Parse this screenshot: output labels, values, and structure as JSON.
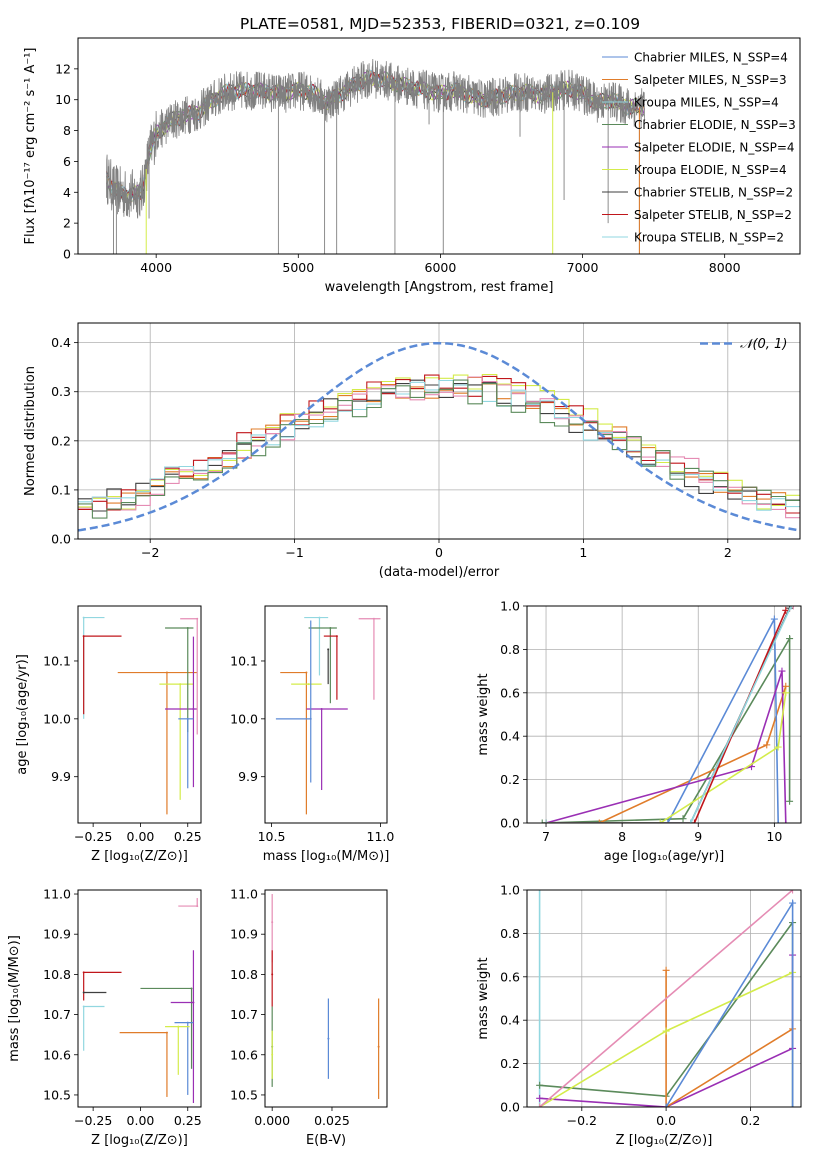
{
  "figure": {
    "title": "PLATE=0581, MJD=52353, FIBERID=0321, z=0.109"
  },
  "colors": {
    "gray": "#808080",
    "blue": "#5B8AD6",
    "orange": "#E07C2A",
    "green": "#5B8A5B",
    "purple": "#9A2FB4",
    "yellow": "#D4EC4A",
    "dark": "#3F3F3F",
    "red": "#C0161B",
    "cyan": "#92D7E0",
    "pink": "#E58CB4",
    "dashed": "#5B8AD6"
  },
  "chart_data": [
    {
      "id": "spectrum",
      "type": "line",
      "xlabel": "wavelength [Angstrom, rest frame]",
      "ylabel": "Flux [fλ10⁻¹⁷ erg cm⁻² s⁻¹ A⁻¹]",
      "xlim": [
        3450,
        8530
      ],
      "ylim": [
        0,
        14
      ],
      "xticks": [
        4000,
        5000,
        6000,
        7000,
        8000
      ],
      "yticks": [
        0,
        2,
        4,
        6,
        8,
        10,
        12
      ],
      "legend_position": "right",
      "legend": [
        "Chabrier MILES, N_SSP=4",
        "Salpeter MILES, N_SSP=3",
        "Kroupa MILES, N_SSP=4",
        "Chabrier ELODIE, N_SSP=3",
        "Salpeter ELODIE, N_SSP=4",
        "Kroupa ELODIE, N_SSP=4",
        "Chabrier STELIB, N_SSP=2",
        "Salpeter STELIB, N_SSP=2",
        "Kroupa STELIB, N_SSP=2"
      ],
      "data_continuum": {
        "x": [
          3650,
          3700,
          3800,
          3900,
          3950,
          4000,
          4100,
          4200,
          4300,
          4400,
          4500,
          4600,
          4700,
          4800,
          4900,
          5000,
          5100,
          5200,
          5300,
          5400,
          5500,
          5600,
          5700,
          5800,
          5900,
          6000,
          6100,
          6200,
          6300,
          6400,
          6500,
          6600,
          6700,
          6800,
          6900,
          7000,
          7100,
          7200,
          7300,
          7400
        ],
        "y": [
          5.0,
          4.2,
          3.8,
          4.0,
          6.5,
          7.8,
          8.6,
          9.0,
          9.2,
          10.0,
          10.5,
          10.6,
          10.6,
          10.5,
          10.4,
          10.6,
          10.5,
          9.8,
          10.4,
          11.0,
          11.4,
          11.3,
          11.0,
          10.8,
          10.6,
          10.4,
          10.6,
          10.3,
          10.0,
          10.2,
          10.4,
          10.5,
          10.3,
          10.5,
          10.7,
          10.4,
          9.8,
          10.0,
          9.6,
          9.5
        ]
      },
      "data_range": [
        3650,
        7440
      ],
      "absorption_dips": [
        {
          "x": 3700,
          "y": 0
        },
        {
          "x": 3720,
          "y": 0
        },
        {
          "x": 3950,
          "y": 2.3
        },
        {
          "x": 4860,
          "y": 0
        },
        {
          "x": 5185,
          "y": 0
        },
        {
          "x": 5270,
          "y": 0
        },
        {
          "x": 5680,
          "y": 0
        },
        {
          "x": 5920,
          "y": 8.4
        },
        {
          "x": 6020,
          "y": 0
        },
        {
          "x": 6560,
          "y": 7.6
        },
        {
          "x": 6870,
          "y": 3.5
        },
        {
          "x": 7180,
          "y": 2.0
        },
        {
          "x": 7400,
          "y": 0
        }
      ],
      "model_spikes": [
        {
          "x": 3930,
          "color": "yellow",
          "y": 0
        },
        {
          "x": 6790,
          "color": "yellow",
          "y": 0
        },
        {
          "x": 7400,
          "color": "orange",
          "y": 0
        }
      ]
    },
    {
      "id": "residuals",
      "type": "histogram",
      "xlabel": "(data-model)/error",
      "ylabel": "Normed distribution",
      "xlim": [
        -2.5,
        2.5
      ],
      "ylim": [
        0,
        0.44
      ],
      "xticks": [
        -2,
        -1,
        0,
        1,
        2
      ],
      "xtick_labels": [
        "−2",
        "−1",
        "0",
        "1",
        "2"
      ],
      "yticks": [
        0.0,
        0.1,
        0.2,
        0.3,
        0.4
      ],
      "ytick_labels": [
        "0.0",
        "0.1",
        "0.2",
        "0.3",
        "0.4"
      ],
      "grid": true,
      "legend": "𝒩(0, 1)",
      "legend_position": "top-right",
      "bin_width": 0.1,
      "series": [
        {
          "color": "orange",
          "shift": 0.02,
          "amp": 0.31
        },
        {
          "color": "yellow",
          "shift": 0.04,
          "amp": 0.32
        },
        {
          "color": "dark",
          "shift": -0.03,
          "amp": 0.31
        },
        {
          "color": "red",
          "shift": 0.0,
          "amp": 0.32
        },
        {
          "color": "pink",
          "shift": 0.05,
          "amp": 0.31
        },
        {
          "color": "cyan",
          "shift": -0.02,
          "amp": 0.305
        },
        {
          "color": "green",
          "shift": 0.03,
          "amp": 0.3
        }
      ]
    },
    {
      "id": "age_vs_Z",
      "type": "scatter",
      "xlabel": "Z [log₁₀(Z/Z⊙)]",
      "ylabel": "age  [log₁₀(age/yr)]",
      "xlim": [
        -0.33,
        0.32
      ],
      "ylim": [
        9.82,
        10.195
      ],
      "xticks": [
        -0.25,
        0.0,
        0.25
      ],
      "xtick_labels": [
        "−0.25",
        "0.00",
        "0.25"
      ],
      "yticks": [
        9.9,
        10.0,
        10.1
      ],
      "ytick_labels": [
        "9.9",
        "10.0",
        "10.1"
      ],
      "points": [
        {
          "color": "cyan",
          "x": -0.3,
          "y": 10.175,
          "xerr": [
            0.0,
            0.11
          ],
          "yerr": [
            0.175,
            0.0
          ]
        },
        {
          "color": "red",
          "x": -0.3,
          "y": 10.143,
          "xerr": [
            0.0,
            0.2
          ],
          "yerr": [
            0.135,
            0.0
          ]
        },
        {
          "color": "orange",
          "x": 0.14,
          "y": 10.08,
          "xerr": [
            0.26,
            0.16
          ],
          "yerr": [
            0.245,
            0.0
          ]
        },
        {
          "color": "yellow",
          "x": 0.21,
          "y": 10.06,
          "xerr": [
            0.11,
            0.07
          ],
          "yerr": [
            0.2,
            0.0
          ]
        },
        {
          "color": "purple",
          "x": 0.28,
          "y": 10.017,
          "xerr": [
            0.15,
            0.02
          ],
          "yerr": [
            0.135,
            0.125
          ]
        },
        {
          "color": "green",
          "x": 0.25,
          "y": 10.157,
          "xerr": [
            0.12,
            0.03
          ],
          "yerr": [
            0.18,
            0.0
          ]
        },
        {
          "color": "pink",
          "x": 0.3,
          "y": 10.173,
          "xerr": [
            0.09,
            0.0
          ],
          "yerr": [
            0.2,
            0.0
          ]
        },
        {
          "color": "blue",
          "x": 0.25,
          "y": 10.0,
          "xerr": [
            0.05,
            0.03
          ],
          "yerr": [
            0.12,
            0.0
          ]
        }
      ]
    },
    {
      "id": "age_vs_mass",
      "type": "scatter",
      "xlabel": "mass [log₁₀(M/M⊙)]",
      "xlim": [
        10.47,
        11.03
      ],
      "ylim": [
        9.82,
        10.195
      ],
      "xticks": [
        10.5,
        11.0
      ],
      "xtick_labels": [
        "10.5",
        "11.0"
      ],
      "yticks": [
        9.9,
        10.0,
        10.1
      ],
      "ytick_labels": [
        "9.9",
        "10.0",
        "10.1"
      ],
      "points": [
        {
          "color": "cyan",
          "x": 10.72,
          "y": 10.175,
          "xerr": [
            0.07,
            0.04
          ],
          "yerr": [
            0.1,
            0.0
          ]
        },
        {
          "color": "pink",
          "x": 10.97,
          "y": 10.173,
          "xerr": [
            0.07,
            0.03
          ],
          "yerr": [
            0.14,
            0.0
          ]
        },
        {
          "color": "green",
          "x": 10.77,
          "y": 10.157,
          "xerr": [
            0.1,
            0.03
          ],
          "yerr": [
            0.13,
            0.0
          ]
        },
        {
          "color": "red",
          "x": 10.8,
          "y": 10.143,
          "xerr": [
            0.06,
            0.0
          ],
          "yerr": [
            0.11,
            0.0
          ]
        },
        {
          "color": "orange",
          "x": 10.66,
          "y": 10.08,
          "xerr": [
            0.12,
            0.0
          ],
          "yerr": [
            0.245,
            0.0
          ]
        },
        {
          "color": "yellow",
          "x": 10.67,
          "y": 10.06,
          "xerr": [
            0.08,
            0.06
          ],
          "yerr": [
            0.0,
            0.0
          ]
        },
        {
          "color": "purple",
          "x": 10.73,
          "y": 10.017,
          "xerr": [
            0.07,
            0.12
          ],
          "yerr": [
            0.14,
            0.0
          ]
        },
        {
          "color": "blue",
          "x": 10.68,
          "y": 10.0,
          "xerr": [
            0.16,
            0.0
          ],
          "yerr": [
            0.11,
            0.17
          ]
        },
        {
          "color": "dark",
          "x": 10.76,
          "y": 10.12,
          "xerr": [
            0.0,
            0.0
          ],
          "yerr": [
            0.06,
            0.0
          ]
        }
      ]
    },
    {
      "id": "mass_weight_vs_age",
      "type": "line",
      "xlabel": "age  [log₁₀(age/yr)]",
      "ylabel": "mass weight",
      "xlim": [
        6.75,
        10.35
      ],
      "ylim": [
        0,
        1
      ],
      "xticks": [
        7,
        8,
        9,
        10
      ],
      "yticks": [
        0.0,
        0.2,
        0.4,
        0.6,
        0.8,
        1.0
      ],
      "ytick_labels": [
        "0.0",
        "0.2",
        "0.4",
        "0.6",
        "0.8",
        "1.0"
      ],
      "grid": true,
      "series": [
        {
          "color": "green",
          "x": [
            6.95,
            8.8,
            10.2,
            10.2
          ],
          "y": [
            0.0,
            0.02,
            0.85,
            0.1
          ]
        },
        {
          "color": "orange",
          "x": [
            7.0,
            7.7,
            9.9,
            10.15
          ],
          "y": [
            0.0,
            0.0,
            0.36,
            0.63
          ]
        },
        {
          "color": "blue",
          "x": [
            7.0,
            8.6,
            10.0,
            10.05
          ],
          "y": [
            0.0,
            0.0,
            0.94,
            0.0
          ]
        },
        {
          "color": "purple",
          "x": [
            7.0,
            9.7,
            10.1,
            10.15
          ],
          "y": [
            0.0,
            0.26,
            0.7,
            0.0
          ]
        },
        {
          "color": "yellow",
          "x": [
            7.0,
            8.5,
            10.05,
            10.15
          ],
          "y": [
            0.0,
            0.0,
            0.35,
            0.6
          ]
        },
        {
          "color": "dark",
          "x": [
            7.0,
            8.9,
            10.2
          ],
          "y": [
            0.0,
            0.0,
            0.99
          ]
        },
        {
          "color": "red",
          "x": [
            7.0,
            8.95,
            10.15
          ],
          "y": [
            0.0,
            0.0,
            0.98
          ]
        },
        {
          "color": "cyan",
          "x": [
            7.0,
            8.9,
            10.22
          ],
          "y": [
            0.0,
            0.0,
            1.0
          ]
        },
        {
          "color": "pink",
          "x": [
            10.25
          ],
          "y": [
            1.0
          ]
        }
      ]
    },
    {
      "id": "mass_vs_Z",
      "type": "scatter",
      "xlabel": "Z [log₁₀(Z/Z⊙)]",
      "ylabel": "mass [log₁₀(M/M⊙)]",
      "xlim": [
        -0.33,
        0.32
      ],
      "ylim": [
        10.47,
        11.01
      ],
      "xticks": [
        -0.25,
        0.0,
        0.25
      ],
      "xtick_labels": [
        "−0.25",
        "0.00",
        "0.25"
      ],
      "yticks": [
        10.5,
        10.6,
        10.7,
        10.8,
        10.9,
        11.0
      ],
      "ytick_labels": [
        "10.5",
        "10.6",
        "10.7",
        "10.8",
        "10.9",
        "11.0"
      ],
      "points": [
        {
          "color": "red",
          "x": -0.3,
          "y": 10.805,
          "xerr": [
            0.0,
            0.2
          ],
          "yerr": [
            0.07,
            0.0
          ]
        },
        {
          "color": "dark",
          "x": -0.3,
          "y": 10.755,
          "xerr": [
            0.0,
            0.12
          ],
          "yerr": [
            0.0,
            0.0
          ]
        },
        {
          "color": "cyan",
          "x": -0.3,
          "y": 10.72,
          "xerr": [
            0.0,
            0.11
          ],
          "yerr": [
            0.11,
            0.0
          ]
        },
        {
          "color": "pink",
          "x": 0.3,
          "y": 10.97,
          "xerr": [
            0.1,
            0.0
          ],
          "yerr": [
            0.0,
            0.02
          ]
        },
        {
          "color": "green",
          "x": 0.27,
          "y": 10.765,
          "xerr": [
            0.27,
            0.0
          ],
          "yerr": [
            0.2,
            0.0
          ]
        },
        {
          "color": "purple",
          "x": 0.28,
          "y": 10.73,
          "xerr": [
            0.12,
            0.0
          ],
          "yerr": [
            0.25,
            0.13
          ]
        },
        {
          "color": "blue",
          "x": 0.25,
          "y": 10.68,
          "xerr": [
            0.07,
            0.03
          ],
          "yerr": [
            0.18,
            0.0
          ]
        },
        {
          "color": "yellow",
          "x": 0.2,
          "y": 10.67,
          "xerr": [
            0.07,
            0.06
          ],
          "yerr": [
            0.12,
            0.0
          ]
        },
        {
          "color": "orange",
          "x": 0.14,
          "y": 10.655,
          "xerr": [
            0.25,
            0.0
          ],
          "yerr": [
            0.16,
            0.0
          ]
        }
      ]
    },
    {
      "id": "mass_vs_ebv",
      "type": "scatter",
      "xlabel": "E(B-V)",
      "xlim": [
        -0.003,
        0.048
      ],
      "ylim": [
        10.47,
        11.01
      ],
      "xticks": [
        0.0,
        0.025
      ],
      "xtick_labels": [
        "0.000",
        "0.025"
      ],
      "yticks": [
        10.5,
        10.6,
        10.7,
        10.8,
        10.9,
        11.0
      ],
      "ytick_labels": [
        "10.5",
        "10.6",
        "10.7",
        "10.8",
        "10.9",
        "11.0"
      ],
      "points": [
        {
          "color": "pink",
          "x": 0.0,
          "y": 10.93,
          "yerr": [
            0.1,
            0.07
          ]
        },
        {
          "color": "red",
          "x": 0.0,
          "y": 10.8,
          "yerr": [
            0.08,
            0.06
          ]
        },
        {
          "color": "green",
          "x": 0.0,
          "y": 10.62,
          "yerr": [
            0.1,
            0.1
          ]
        },
        {
          "color": "yellow",
          "x": 0.0,
          "y": 10.6,
          "yerr": [
            0.06,
            0.06
          ]
        },
        {
          "color": "blue",
          "x": 0.0235,
          "y": 10.64,
          "yerr": [
            0.1,
            0.1
          ]
        },
        {
          "color": "orange",
          "x": 0.0445,
          "y": 10.62,
          "yerr": [
            0.13,
            0.12
          ]
        }
      ]
    },
    {
      "id": "mass_weight_vs_Z",
      "type": "line",
      "xlabel": "Z [log₁₀(Z/Z⊙)]",
      "ylabel": "mass weight",
      "xlim": [
        -0.33,
        0.32
      ],
      "ylim": [
        0,
        1
      ],
      "xticks": [
        -0.2,
        0.0,
        0.2
      ],
      "xtick_labels": [
        "−0.2",
        "0.0",
        "0.2"
      ],
      "yticks": [
        0.0,
        0.2,
        0.4,
        0.6,
        0.8,
        1.0
      ],
      "ytick_labels": [
        "0.0",
        "0.2",
        "0.4",
        "0.6",
        "0.8",
        "1.0"
      ],
      "grid": true,
      "series": [
        {
          "color": "cyan",
          "x": [
            -0.3,
            -0.3
          ],
          "y": [
            0.0,
            1.0
          ]
        },
        {
          "color": "green",
          "x": [
            -0.3,
            0.0,
            0.3,
            0.3
          ],
          "y": [
            0.1,
            0.05,
            0.85,
            0.0
          ]
        },
        {
          "color": "purple",
          "x": [
            -0.3,
            0.0,
            0.3,
            0.3
          ],
          "y": [
            0.04,
            0.0,
            0.27,
            0.7
          ]
        },
        {
          "color": "orange",
          "x": [
            0.0,
            0.0,
            0.3
          ],
          "y": [
            0.63,
            0.0,
            0.36
          ]
        },
        {
          "color": "yellow",
          "x": [
            -0.3,
            0.0,
            0.3
          ],
          "y": [
            0.0,
            0.35,
            0.62
          ]
        },
        {
          "color": "blue",
          "x": [
            0.0,
            0.3,
            0.3
          ],
          "y": [
            0.0,
            0.94,
            0.0
          ]
        },
        {
          "color": "pink",
          "x": [
            -0.3,
            0.3
          ],
          "y": [
            0.0,
            1.0
          ]
        }
      ]
    }
  ]
}
